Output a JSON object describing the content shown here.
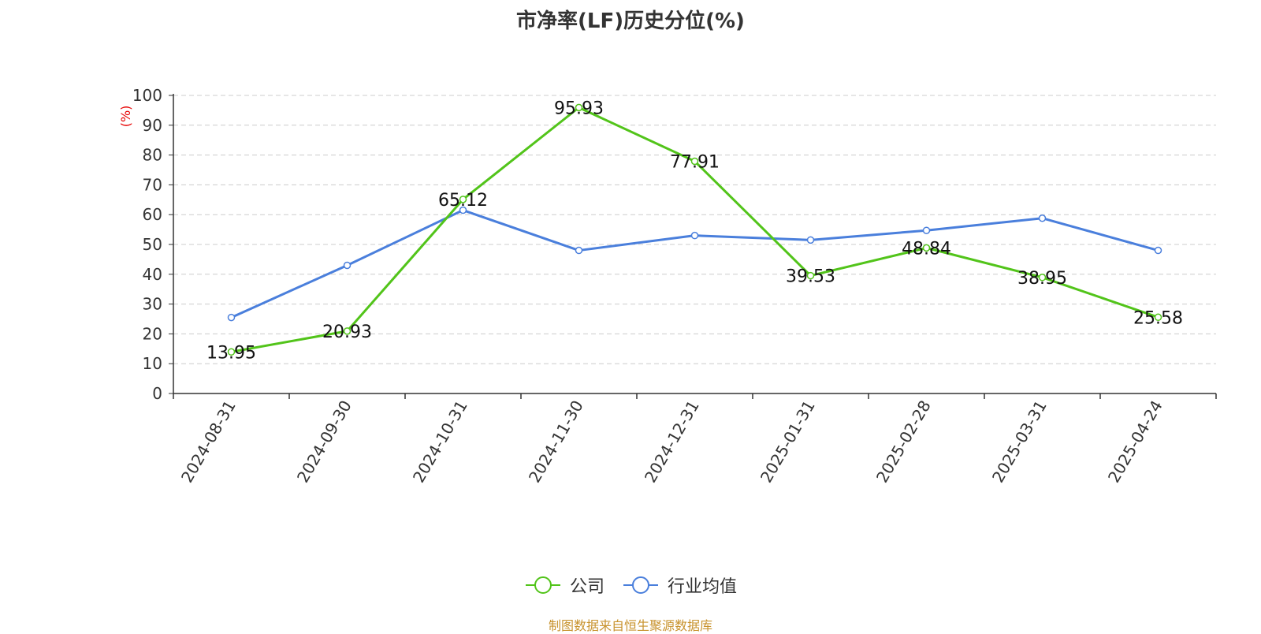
{
  "title": "市净率(LF)历史分位(%)",
  "source_note": "制图数据来自恒生聚源数据库",
  "colors": {
    "company": "#52c41a",
    "industry": "#4a7fdc",
    "axis": "#333333",
    "grid": "#cccccc",
    "unit": "#e60000"
  },
  "chart_data": {
    "type": "line",
    "title": "市净率(LF)历史分位(%)",
    "ylabel": "(%)",
    "ylim": [
      0,
      100
    ],
    "yticks": [
      0,
      10,
      20,
      30,
      40,
      50,
      60,
      70,
      80,
      90,
      100
    ],
    "grid": true,
    "legend_position": "bottom",
    "categories": [
      "2024-08-31",
      "2024-09-30",
      "2024-10-31",
      "2024-11-30",
      "2024-12-31",
      "2025-01-31",
      "2025-02-28",
      "2025-03-31",
      "2025-04-24"
    ],
    "series": [
      {
        "name": "公司",
        "values": [
          13.95,
          20.93,
          65.12,
          95.93,
          77.91,
          39.53,
          48.84,
          38.95,
          25.58
        ],
        "labels": [
          "13.95",
          "20.93",
          "65.12",
          "95.93",
          "77.91",
          "39.53",
          "48.84",
          "38.95",
          "25.58"
        ]
      },
      {
        "name": "行业均值",
        "values": [
          25.5,
          43.0,
          61.5,
          48.0,
          53.0,
          51.5,
          54.7,
          58.8,
          48.0
        ]
      }
    ]
  }
}
